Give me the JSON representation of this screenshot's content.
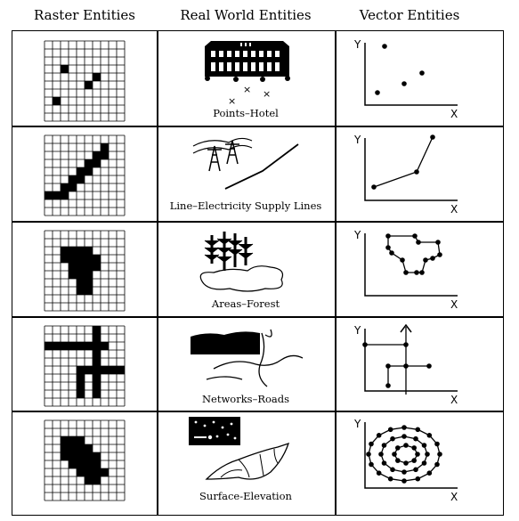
{
  "headers": {
    "raster": "Raster Entities",
    "real": "Real World Entities",
    "vector": "Vector Entities"
  },
  "rows": [
    {
      "label": "Points–Hotel"
    },
    {
      "label": "Line–Electricity Supply Lines"
    },
    {
      "label": "Areas–Forest"
    },
    {
      "label": "Networks–Roads"
    },
    {
      "label": "Surface-Elevation"
    }
  ],
  "axes": {
    "x": "X",
    "y": "Y"
  },
  "hotel_marks": [
    "×",
    "×",
    "×"
  ]
}
